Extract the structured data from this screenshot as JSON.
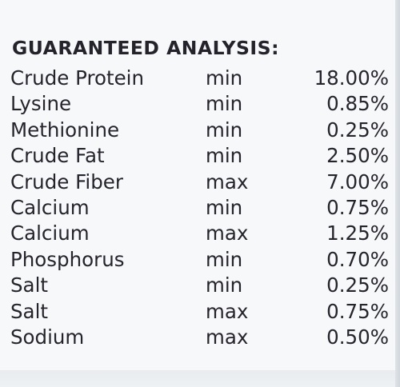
{
  "heading": "GUARANTEED ANALYSIS:",
  "rows": [
    {
      "nutrient": "Crude Protein",
      "qualifier": "min",
      "amount": "18.00%"
    },
    {
      "nutrient": "Lysine",
      "qualifier": "min",
      "amount": "0.85%"
    },
    {
      "nutrient": "Methionine",
      "qualifier": "min",
      "amount": "0.25%"
    },
    {
      "nutrient": "Crude Fat",
      "qualifier": "min",
      "amount": "2.50%"
    },
    {
      "nutrient": "Crude Fiber",
      "qualifier": "max",
      "amount": "7.00%"
    },
    {
      "nutrient": "Calcium",
      "qualifier": "min",
      "amount": "0.75%"
    },
    {
      "nutrient": "Calcium",
      "qualifier": "max",
      "amount": "1.25%"
    },
    {
      "nutrient": "Phosphorus",
      "qualifier": "min",
      "amount": "0.70%"
    },
    {
      "nutrient": "Salt",
      "qualifier": "min",
      "amount": "0.25%"
    },
    {
      "nutrient": "Salt",
      "qualifier": "max",
      "amount": "0.75%"
    },
    {
      "nutrient": "Sodium",
      "qualifier": "max",
      "amount": "0.50%"
    }
  ],
  "colors": {
    "text": "#25242c",
    "background": "#f7f8f9"
  }
}
